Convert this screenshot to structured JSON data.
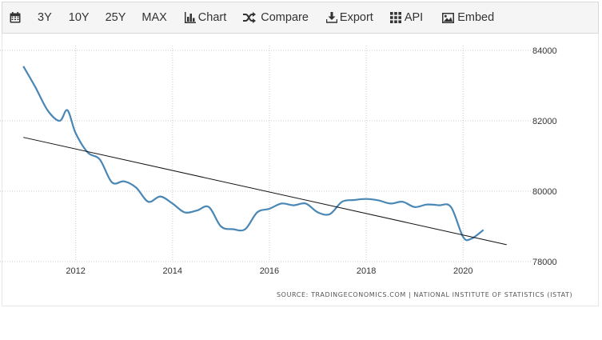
{
  "toolbar": {
    "calendar_icon": "calendar-icon",
    "range_3y": "3Y",
    "range_10y": "10Y",
    "range_25y": "25Y",
    "range_max": "MAX",
    "chart_label": "Chart",
    "compare_label": "Compare",
    "export_label": "Export",
    "api_label": "API",
    "embed_label": "Embed"
  },
  "source_text": "SOURCE: TRADINGECONOMICS.COM | NATIONAL INSTITUTE OF STATISTICS (ISTAT)",
  "colors": {
    "series": "#4a87b5",
    "trend": "#111111",
    "grid": "#cccccc",
    "toolbar_bg": "#f5f5f5"
  },
  "chart_data": {
    "type": "line",
    "title": "",
    "xlabel": "",
    "ylabel": "",
    "x_ticks": [
      "2012",
      "2014",
      "2016",
      "2018",
      "2020"
    ],
    "y_ticks": [
      "78000",
      "80000",
      "82000",
      "84000"
    ],
    "xlim": [
      2010.9,
      2021.3
    ],
    "ylim": [
      78000,
      84000
    ],
    "grid": true,
    "y_axis_side": "right",
    "series": [
      {
        "name": "",
        "x": [
          2010.92,
          2011.17,
          2011.42,
          2011.67,
          2011.83,
          2012.0,
          2012.25,
          2012.5,
          2012.75,
          2013.0,
          2013.25,
          2013.5,
          2013.75,
          2014.0,
          2014.25,
          2014.5,
          2014.75,
          2015.0,
          2015.25,
          2015.5,
          2015.75,
          2016.0,
          2016.25,
          2016.5,
          2016.75,
          2017.0,
          2017.25,
          2017.5,
          2017.75,
          2018.0,
          2018.25,
          2018.5,
          2018.75,
          2019.0,
          2019.25,
          2019.5,
          2019.75,
          2020.0,
          2020.17,
          2020.42
        ],
        "values": [
          83550,
          82950,
          82300,
          82000,
          82300,
          81650,
          81100,
          80900,
          80250,
          80280,
          80100,
          79700,
          79850,
          79650,
          79400,
          79450,
          79550,
          79000,
          78920,
          78920,
          79400,
          79500,
          79650,
          79600,
          79650,
          79400,
          79350,
          79700,
          79750,
          79780,
          79740,
          79650,
          79700,
          79550,
          79620,
          79600,
          79550,
          78700,
          78650,
          78900
        ]
      },
      {
        "name": "",
        "x": [
          2010.92,
          2020.9
        ],
        "values": [
          81530,
          78480
        ]
      }
    ]
  }
}
